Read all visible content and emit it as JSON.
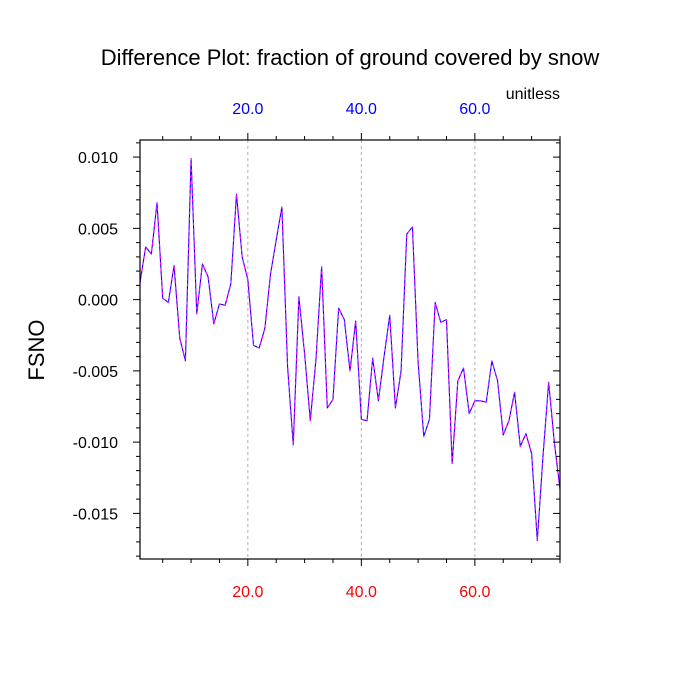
{
  "chart_data": {
    "type": "line",
    "title": "Difference Plot: fraction of ground covered by snow",
    "units": "unitless",
    "ylabel": "FSNO",
    "xlabel": "",
    "xlim": [
      1,
      75
    ],
    "ylim": [
      -0.0182,
      0.0112
    ],
    "x_ticks": [
      20,
      40,
      60
    ],
    "x_tick_labels": [
      "20.0",
      "40.0",
      "60.0"
    ],
    "y_ticks": [
      0.01,
      0.005,
      0.0,
      -0.005,
      -0.01,
      -0.015
    ],
    "y_tick_labels": [
      "0.010",
      "0.005",
      "0.000",
      "-0.005",
      "-0.010",
      "-0.015"
    ],
    "grid": "vertical dashed at major x ticks",
    "colors": {
      "bottom_tick_labels": "#ff0000",
      "top_tick_labels": "#0000ff",
      "line_primary": "#0000ff",
      "line_dash": "#ff00ff",
      "grid": "#b0b0b0",
      "frame": "#000000"
    },
    "series": [
      {
        "x": [
          1,
          2,
          3,
          4,
          5,
          6,
          7,
          8,
          9,
          10,
          11,
          12,
          13,
          14,
          15,
          16,
          17,
          18,
          19,
          20,
          21,
          22,
          23,
          24,
          25,
          26,
          27,
          28,
          29,
          30,
          31,
          32,
          33,
          34,
          35,
          36,
          37,
          38,
          39,
          40,
          41,
          42,
          43,
          44,
          45,
          46,
          47,
          48,
          49,
          50,
          51,
          52,
          53,
          54,
          55,
          56,
          57,
          58,
          59,
          60,
          61,
          62,
          63,
          64,
          65,
          66,
          67,
          68,
          69,
          70,
          71,
          72,
          73,
          74,
          75
        ],
        "values": [
          0.0012,
          0.0037,
          0.0032,
          0.0068,
          0.0001,
          -0.0002,
          0.0024,
          -0.0027,
          -0.0043,
          0.0099,
          -0.001,
          0.0025,
          0.0016,
          -0.0017,
          -0.0003,
          -0.0004,
          0.0011,
          0.0074,
          0.003,
          0.0014,
          -0.0032,
          -0.0034,
          -0.002,
          0.0018,
          0.0042,
          0.0065,
          -0.0047,
          -0.0102,
          0.0002,
          -0.0038,
          -0.0085,
          -0.0042,
          0.0023,
          -0.0076,
          -0.007,
          -0.0006,
          -0.0014,
          -0.005,
          -0.0015,
          -0.0084,
          -0.0085,
          -0.0041,
          -0.0071,
          -0.004,
          -0.0011,
          -0.0076,
          -0.005,
          0.0046,
          0.0051,
          -0.0044,
          -0.0096,
          -0.0084,
          -0.0002,
          -0.0016,
          -0.0014,
          -0.0115,
          -0.0057,
          -0.0048,
          -0.008,
          -0.0071,
          -0.0071,
          -0.0072,
          -0.0043,
          -0.0057,
          -0.0095,
          -0.0085,
          -0.0065,
          -0.0103,
          -0.0094,
          -0.0108,
          -0.0169,
          -0.011,
          -0.0058,
          -0.01,
          -0.0133
        ]
      }
    ]
  }
}
